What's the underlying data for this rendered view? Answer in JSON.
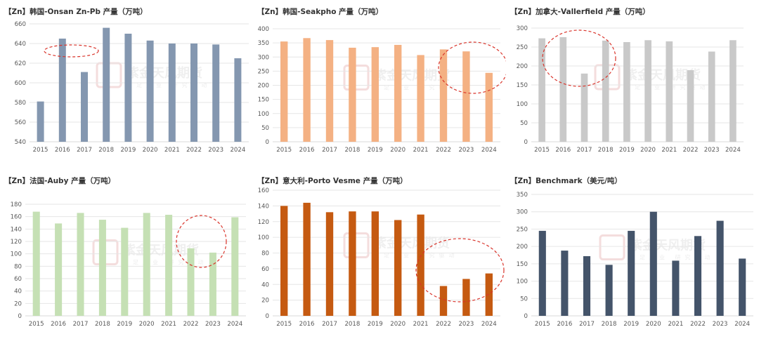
{
  "watermark": {
    "name": "紫金天风期货",
    "sub": "立足产业 研究驱动"
  },
  "chart_data": [
    {
      "type": "bar",
      "title": "【Zn】韩国-Onsan Zn-Pb 产量（万吨）",
      "categories": [
        "2015",
        "2016",
        "2017",
        "2018",
        "2019",
        "2020",
        "2021",
        "2022",
        "2023",
        "2024"
      ],
      "values": [
        581,
        645,
        611,
        656,
        650,
        643,
        640,
        640,
        639,
        625
      ],
      "ylim": [
        540,
        660
      ],
      "yticks": [
        540,
        560,
        580,
        600,
        620,
        640,
        660
      ],
      "color": "#8497b0",
      "annotation": {
        "shape": "dashed-ellipse",
        "around": [
          "2016",
          "2017"
        ]
      }
    },
    {
      "type": "bar",
      "title": "【Zn】韩国-Seakpho 产量（万吨）",
      "categories": [
        "2015",
        "2016",
        "2017",
        "2018",
        "2019",
        "2020",
        "2021",
        "2022",
        "2023",
        "2024"
      ],
      "values": [
        355,
        367,
        360,
        333,
        335,
        343,
        307,
        327,
        320,
        244
      ],
      "ylim": [
        0,
        400
      ],
      "yticks": [
        0,
        50,
        100,
        150,
        200,
        250,
        300,
        350,
        400
      ],
      "color": "#f4b183",
      "annotation": {
        "shape": "dashed-ellipse",
        "around": [
          "2022",
          "2023",
          "2024"
        ]
      }
    },
    {
      "type": "bar",
      "title": "【Zn】加拿大-Vallerfield 产量（万吨）",
      "categories": [
        "2015",
        "2016",
        "2017",
        "2018",
        "2019",
        "2020",
        "2021",
        "2022",
        "2023",
        "2024"
      ],
      "values": [
        273,
        276,
        180,
        267,
        263,
        268,
        265,
        189,
        238,
        268
      ],
      "ylim": [
        0,
        300
      ],
      "yticks": [
        0,
        50,
        100,
        150,
        200,
        250,
        300
      ],
      "color": "#c9c9c9",
      "annotation": {
        "shape": "dashed-ellipse",
        "around": [
          "2016",
          "2017",
          "2018"
        ]
      }
    },
    {
      "type": "bar",
      "title": "【Zn】法国-Auby 产量（万吨）",
      "categories": [
        "2015",
        "2016",
        "2017",
        "2018",
        "2019",
        "2020",
        "2021",
        "2022",
        "2023",
        "2024"
      ],
      "values": [
        168,
        149,
        166,
        155,
        142,
        166,
        163,
        109,
        102,
        159
      ],
      "ylim": [
        0,
        180
      ],
      "yticks": [
        0,
        20,
        40,
        60,
        80,
        100,
        120,
        140,
        160,
        180
      ],
      "color": "#c5e0b4",
      "annotation": {
        "shape": "dashed-ellipse",
        "around": [
          "2022",
          "2023"
        ]
      }
    },
    {
      "type": "bar",
      "title": "【Zn】意大利-Porto Vesme 产量（万吨）",
      "categories": [
        "2015",
        "2016",
        "2017",
        "2018",
        "2019",
        "2020",
        "2021",
        "2022",
        "2023",
        "2024"
      ],
      "values": [
        140,
        144,
        132,
        133,
        133,
        122,
        129,
        38,
        47,
        54
      ],
      "ylim": [
        0,
        160
      ],
      "yticks": [
        0,
        20,
        40,
        60,
        80,
        100,
        120,
        140,
        160
      ],
      "color": "#c55a11",
      "annotation": {
        "shape": "dashed-ellipse",
        "around": [
          "2022",
          "2023",
          "2024"
        ]
      }
    },
    {
      "type": "bar",
      "title": "【Zn】Benchmark（美元/吨）",
      "categories": [
        "2015",
        "2016",
        "2017",
        "2018",
        "2019",
        "2020",
        "2021",
        "2022",
        "2023",
        "2024"
      ],
      "values": [
        245,
        188,
        172,
        147,
        245,
        300,
        159,
        230,
        274,
        165
      ],
      "ylim": [
        0,
        350
      ],
      "yticks": [
        0,
        50,
        100,
        150,
        200,
        250,
        300,
        350
      ],
      "color": "#44546a"
    }
  ]
}
